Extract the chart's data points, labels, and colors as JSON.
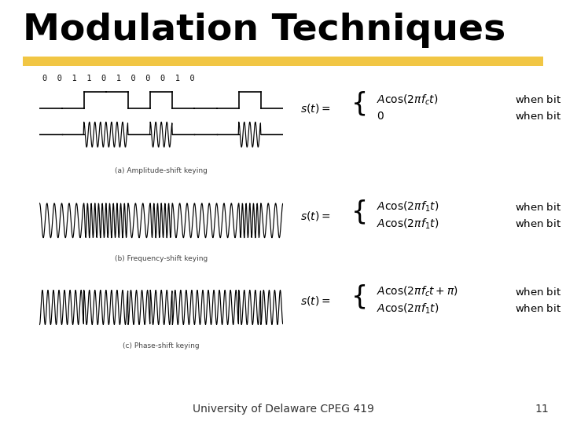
{
  "title": "Modulation Techniques",
  "title_fontsize": 34,
  "title_color": "#000000",
  "bg_color": "#ffffff",
  "highlight_color": "#f0c030",
  "footer_text": "University of Delaware CPEG 419",
  "footer_number": "11",
  "footer_fontsize": 10,
  "bits": [
    0,
    0,
    1,
    1,
    0,
    1,
    0,
    0,
    0,
    1,
    0
  ],
  "ask_label": "(a) Amplitude-shift keying",
  "fsk_label": "(b) Frequency-shift keying",
  "psk_label": "(c) Phase-shift keying",
  "fc_ask": 4.0,
  "fc_psk": 4.0,
  "f_fsk_low": 3.0,
  "f_fsk_high": 6.0
}
